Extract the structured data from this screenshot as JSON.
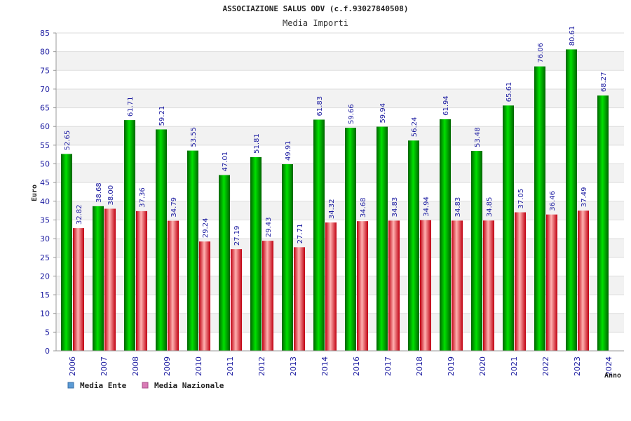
{
  "chart_data": {
    "type": "bar",
    "title": "ASSOCIAZIONE SALUS ODV (c.f.93027840508)",
    "subtitle": "Media Importi",
    "ylabel": "Euro",
    "xlabel": "Anno",
    "ylim": [
      0,
      85
    ],
    "yticks": [
      0,
      5,
      10,
      15,
      20,
      25,
      30,
      35,
      40,
      45,
      50,
      55,
      60,
      65,
      70,
      75,
      80,
      85
    ],
    "grid": true,
    "legend_position": "bottom-left",
    "categories": [
      "2006",
      "2007",
      "2008",
      "2009",
      "2010",
      "2011",
      "2012",
      "2013",
      "2014",
      "2016",
      "2017",
      "2018",
      "2019",
      "2020",
      "2021",
      "2022",
      "2023",
      "2024"
    ],
    "series": [
      {
        "name": "Media Ente",
        "color": "#00b000",
        "legend_color": "#5b9bd5",
        "values": [
          52.65,
          38.68,
          61.71,
          59.21,
          53.55,
          47.01,
          51.81,
          49.91,
          61.83,
          59.66,
          59.94,
          56.24,
          61.94,
          53.48,
          65.61,
          76.06,
          80.61,
          68.27
        ],
        "labels": [
          "52.65",
          "38.68",
          "61.71",
          "59.21",
          "53.55",
          "47.01",
          "51.81",
          "49.91",
          "61.83",
          "59.66",
          "59.94",
          "56.24",
          "61.94",
          "53.48",
          "65.61",
          "76.06",
          "80.61",
          "68.27"
        ]
      },
      {
        "name": "Media Nazionale",
        "color": "#e0202a",
        "legend_color": "#d97ab5",
        "values": [
          32.82,
          38.0,
          37.36,
          34.79,
          29.24,
          27.19,
          29.43,
          27.71,
          34.32,
          34.68,
          34.83,
          34.94,
          34.83,
          34.85,
          37.05,
          36.46,
          37.49,
          null
        ],
        "labels": [
          "32.82",
          "38.00",
          "37.36",
          "34.79",
          "29.24",
          "27.19",
          "29.43",
          "27.71",
          "34.32",
          "34.68",
          "34.83",
          "34.94",
          "34.83",
          "34.85",
          "37.05",
          "36.46",
          "37.49",
          null
        ]
      }
    ]
  }
}
